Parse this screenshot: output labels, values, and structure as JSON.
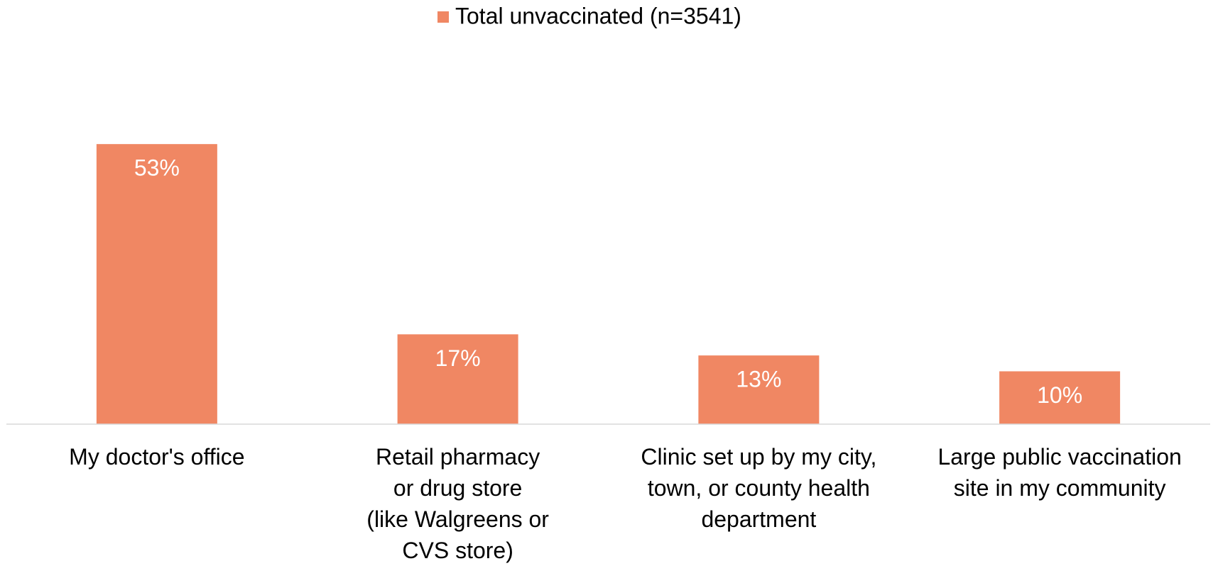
{
  "chart_data": {
    "type": "bar",
    "categories": [
      "My doctor's office",
      "Retail pharmacy\nor drug store\n(like Walgreens or\nCVS store)",
      "Clinic set up by my city,\ntown, or county health\ndepartment",
      "Large public vaccination\nsite in my community"
    ],
    "series": [
      {
        "name": "Total unvaccinated (n=3541)",
        "color": "#f08763",
        "values": [
          53,
          17,
          13,
          10
        ],
        "value_labels": [
          "53%",
          "17%",
          "13%",
          "10%"
        ]
      }
    ],
    "legend": "top"
  }
}
